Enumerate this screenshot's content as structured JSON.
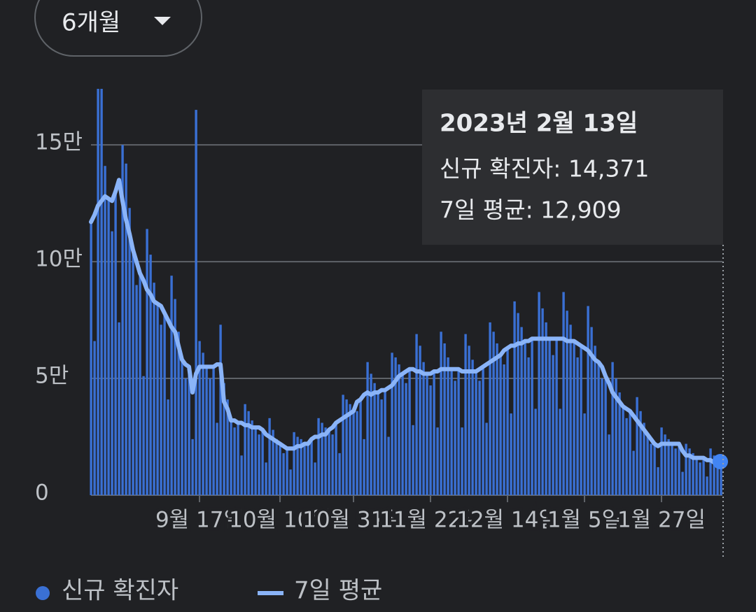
{
  "dropdown": {
    "label": "6개월"
  },
  "tooltip": {
    "title": "2023년 2월 13일",
    "lines": [
      "신규 확진자: 14,371",
      "7일 평균: 12,909"
    ]
  },
  "chart_data": {
    "type": "bar_line",
    "categories": [
      null,
      null,
      null,
      null,
      null,
      null,
      null,
      null,
      null,
      null,
      null,
      null,
      null,
      null,
      null,
      null,
      null,
      null,
      null,
      null,
      null,
      null,
      null,
      null,
      null,
      null,
      null,
      null,
      null,
      null,
      null,
      "9월 17일",
      null,
      null,
      null,
      null,
      null,
      null,
      null,
      null,
      null,
      null,
      null,
      null,
      null,
      null,
      null,
      null,
      null,
      null,
      null,
      null,
      null,
      null,
      "10월 10일",
      null,
      null,
      null,
      null,
      null,
      null,
      null,
      null,
      null,
      null,
      null,
      null,
      null,
      null,
      null,
      null,
      null,
      null,
      null,
      null,
      "10월 31일",
      null,
      null,
      null,
      null,
      null,
      null,
      null,
      null,
      null,
      null,
      null,
      null,
      null,
      null,
      null,
      null,
      null,
      null,
      null,
      null,
      null,
      "11월 22일",
      null,
      null,
      null,
      null,
      null,
      null,
      null,
      null,
      null,
      null,
      null,
      null,
      null,
      null,
      null,
      null,
      null,
      null,
      null,
      null,
      null,
      "12월 14일",
      null,
      null,
      null,
      null,
      null,
      null,
      null,
      null,
      null,
      null,
      null,
      null,
      null,
      null,
      null,
      null,
      null,
      null,
      null,
      null,
      null,
      "1월 5일",
      null,
      null,
      null,
      null,
      null,
      null,
      null,
      null,
      null,
      null,
      null,
      null,
      null,
      null,
      null,
      null,
      null,
      null,
      null,
      null,
      null,
      "1월 27일",
      null,
      null,
      null,
      null,
      null,
      null,
      null,
      null,
      null,
      null,
      null,
      null,
      null,
      null,
      null,
      null,
      null
    ],
    "series": [
      {
        "name": "신규 확진자",
        "type": "bar",
        "color": "#3a70d4",
        "values": [
          117000,
          66000,
          174000,
          174000,
          141000,
          127000,
          113000,
          130000,
          74000,
          150000,
          142000,
          123000,
          105000,
          90000,
          95000,
          51000,
          114000,
          103000,
          91000,
          82000,
          73000,
          78000,
          41000,
          94000,
          84000,
          70000,
          58000,
          50000,
          55000,
          24000,
          165000,
          66000,
          61000,
          55000,
          50000,
          55000,
          31000,
          73000,
          48000,
          41000,
          32000,
          29000,
          31000,
          17000,
          39000,
          36000,
          32000,
          29000,
          26000,
          28000,
          14000,
          33000,
          28000,
          24000,
          21000,
          18000,
          20000,
          11000,
          27000,
          25000,
          24000,
          22000,
          22000,
          24000,
          14000,
          33000,
          31000,
          29000,
          28000,
          26000,
          31000,
          18000,
          43000,
          41000,
          39000,
          36000,
          36000,
          41000,
          24000,
          57000,
          52000,
          48000,
          44000,
          41000,
          45000,
          25000,
          61000,
          59000,
          56000,
          52000,
          48000,
          54000,
          30000,
          69000,
          64000,
          57000,
          52000,
          47000,
          53000,
          29000,
          70000,
          65000,
          59000,
          54000,
          49000,
          54000,
          29000,
          69000,
          64000,
          58000,
          53000,
          49000,
          55000,
          31000,
          74000,
          70000,
          65000,
          60000,
          56000,
          63000,
          35000,
          83000,
          78000,
          72000,
          66000,
          59000,
          67000,
          37000,
          87000,
          80000,
          74000,
          67000,
          60000,
          67000,
          37000,
          87000,
          79000,
          73000,
          66000,
          59000,
          64000,
          35000,
          81000,
          72000,
          64000,
          57000,
          50000,
          51000,
          26000,
          57000,
          50000,
          44000,
          38000,
          33000,
          36000,
          19000,
          42000,
          36000,
          31000,
          26000,
          22000,
          22000,
          12000,
          29000,
          26000,
          24000,
          22000,
          20000,
          22000,
          10000,
          22000,
          20000,
          18000,
          16000,
          14000,
          16000,
          8000,
          20000,
          17000,
          15000,
          14371
        ]
      },
      {
        "name": "7일 평균",
        "type": "line",
        "color": "#8ab4f8",
        "values": [
          117000,
          120000,
          124000,
          126000,
          128000,
          127000,
          126000,
          130000,
          135000,
          126000,
          118000,
          112000,
          105000,
          100000,
          95000,
          92000,
          88000,
          86000,
          83000,
          82000,
          81000,
          78000,
          75000,
          72000,
          70000,
          64000,
          58000,
          56000,
          55000,
          44000,
          52000,
          55000,
          55000,
          55000,
          55000,
          55000,
          56000,
          56000,
          40000,
          37000,
          32000,
          32000,
          31000,
          31000,
          30000,
          30000,
          29000,
          29000,
          29000,
          28000,
          26000,
          25000,
          24000,
          23000,
          22000,
          21000,
          20000,
          20000,
          20000,
          21000,
          21000,
          22000,
          22000,
          24000,
          25000,
          25000,
          26000,
          26000,
          28000,
          29000,
          31000,
          32000,
          33000,
          34000,
          35000,
          36000,
          40000,
          41000,
          43000,
          44000,
          43000,
          44000,
          44000,
          45000,
          45000,
          46000,
          47000,
          49000,
          51000,
          52000,
          53000,
          54000,
          54000,
          53000,
          53000,
          52000,
          52000,
          52000,
          53000,
          53000,
          54000,
          54000,
          54000,
          54000,
          54000,
          54000,
          53000,
          53000,
          53000,
          53000,
          53000,
          54000,
          55000,
          56000,
          57000,
          58000,
          59000,
          60000,
          62000,
          63000,
          64000,
          64000,
          65000,
          65000,
          66000,
          66000,
          67000,
          67000,
          67000,
          67000,
          67000,
          67000,
          67000,
          67000,
          67000,
          67000,
          66000,
          66000,
          66000,
          65000,
          64000,
          63000,
          62000,
          60000,
          58000,
          57000,
          55000,
          51000,
          48000,
          44000,
          42000,
          40000,
          38000,
          37000,
          36000,
          34000,
          32000,
          30000,
          28000,
          26000,
          24000,
          22000,
          21000,
          22000,
          22000,
          22000,
          22000,
          22000,
          22000,
          19000,
          17000,
          17000,
          16000,
          16000,
          16000,
          16000,
          15000,
          15000,
          14000,
          14000,
          12909
        ]
      }
    ],
    "ylim": [
      0,
      180000
    ],
    "yticks": [
      0,
      {
        "value": 50000,
        "label": "5만"
      },
      {
        "value": 100000,
        "label": "10만"
      },
      {
        "value": 150000,
        "label": "15만"
      }
    ],
    "grid": true
  }
}
